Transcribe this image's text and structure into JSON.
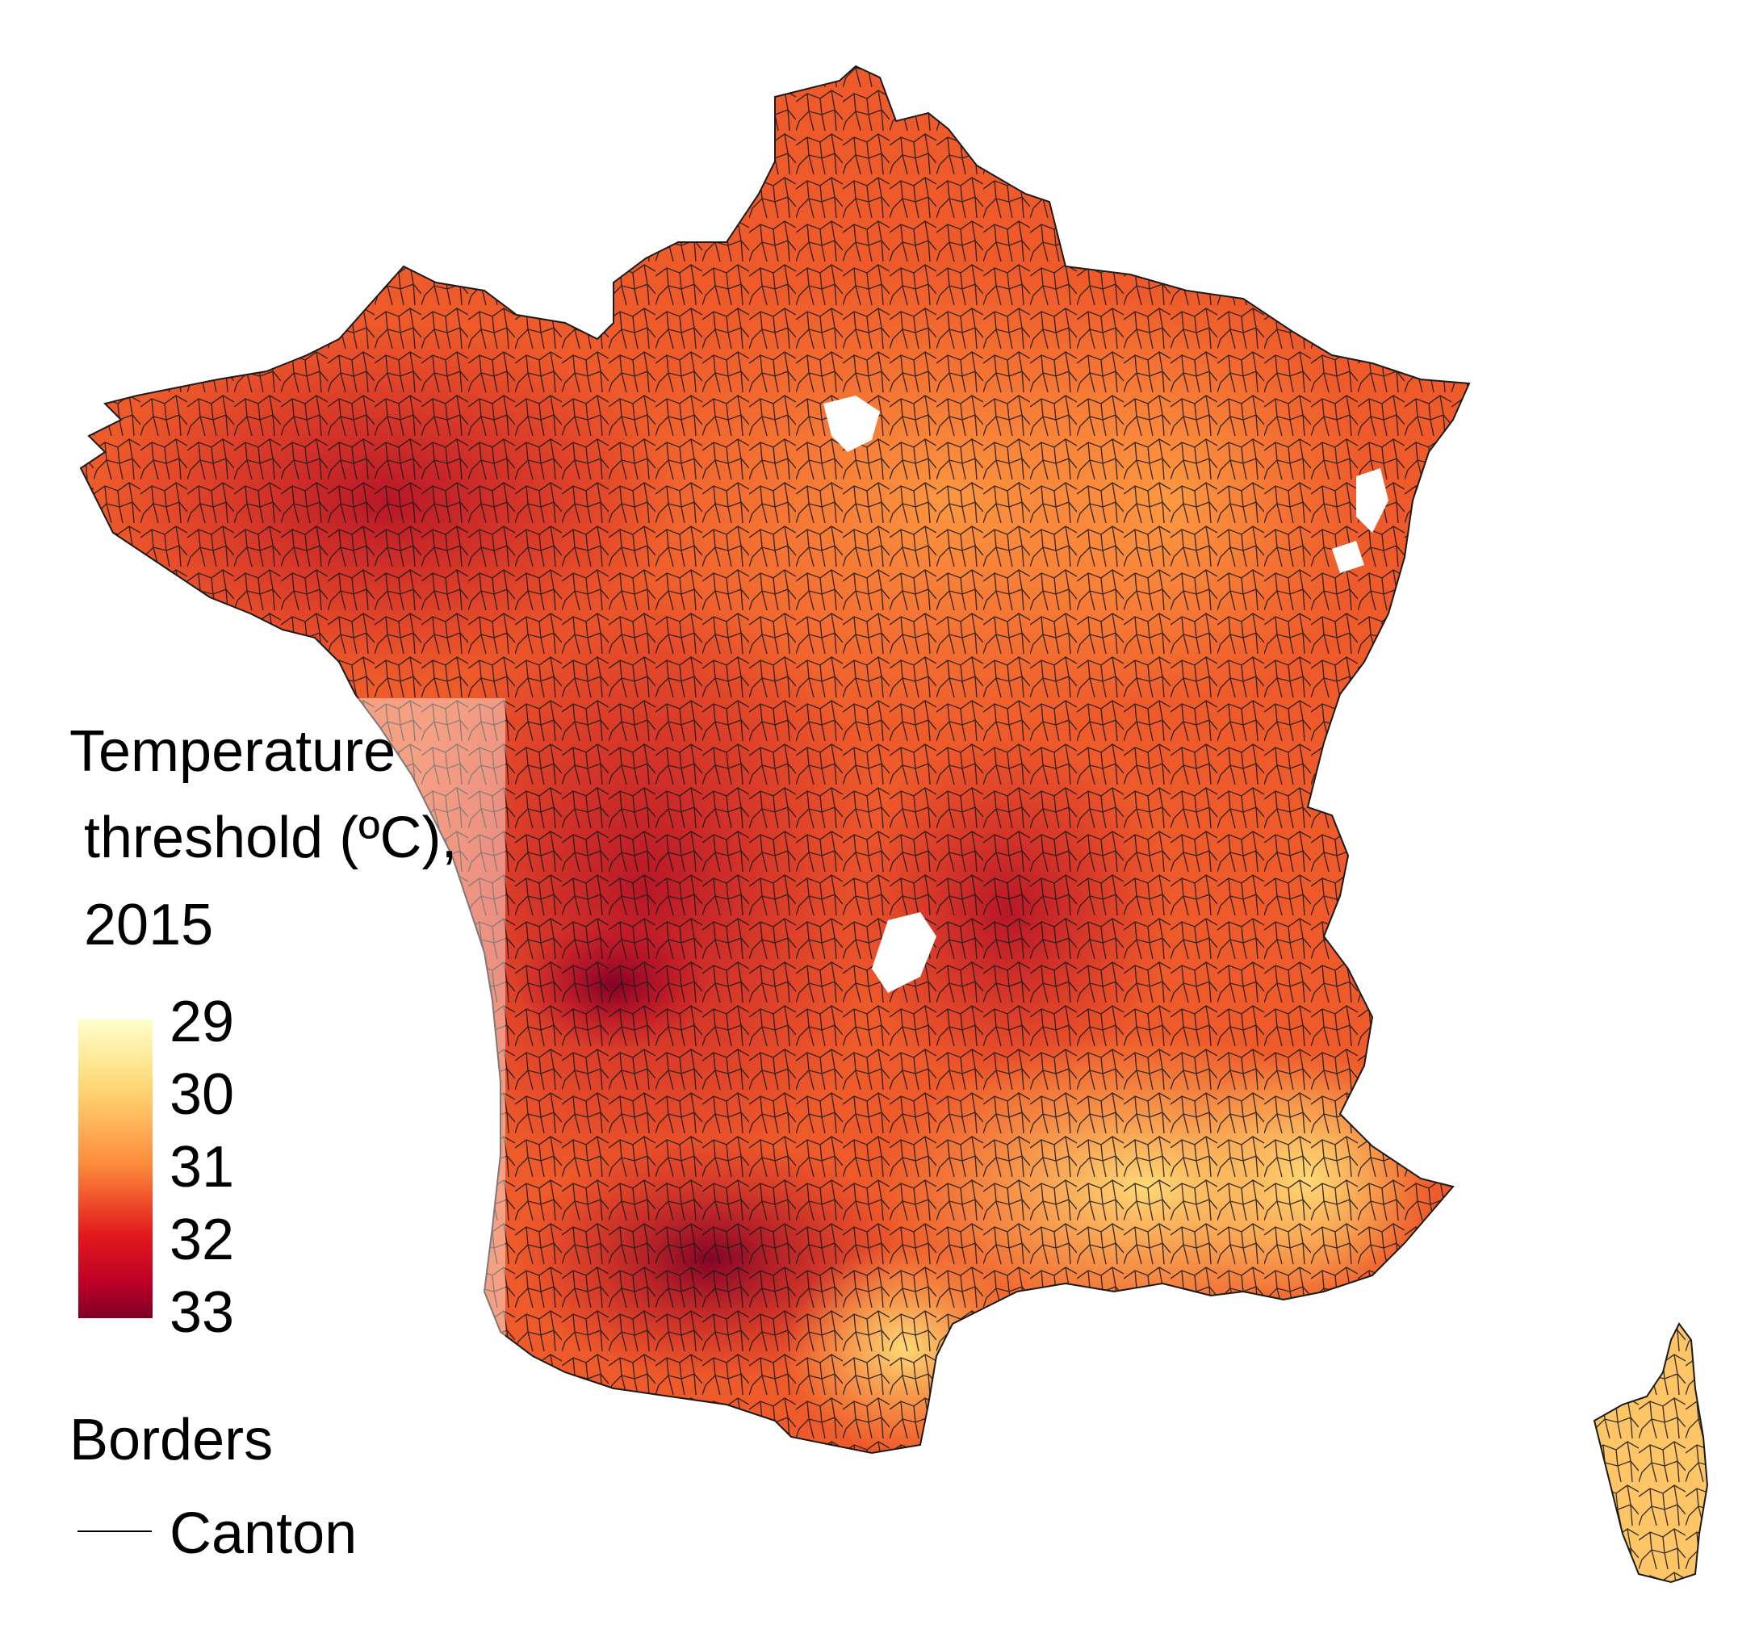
{
  "legend": {
    "title_line1": "Temperature",
    "title_line2": "threshold (ºC),",
    "title_line3": "2015",
    "ticks": [
      "29",
      "30",
      "31",
      "32",
      "33"
    ],
    "scale_colors": [
      "#ffffcc",
      "#fed976",
      "#fd8d3c",
      "#e31a1c",
      "#bd0026",
      "#800026"
    ]
  },
  "borders": {
    "title": "Borders",
    "item_label": "Canton"
  }
}
